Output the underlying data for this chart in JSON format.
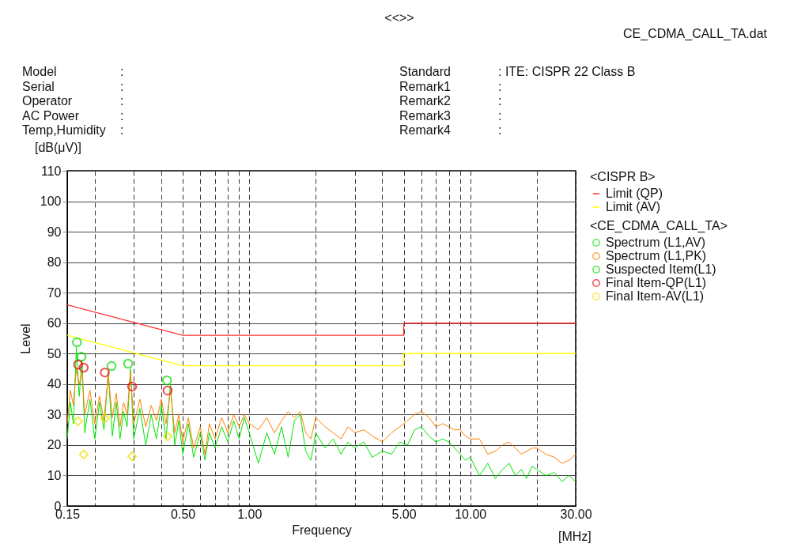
{
  "chart_data": {
    "type": "line",
    "title": "<<>>",
    "xlabel": "Frequency",
    "ylabel": "Level",
    "annotations": [
      "CE_CDMA_CALL_TA.dat",
      "Model :",
      "Serial :",
      "Operator :",
      "AC Power :",
      "Temp,Humidity :",
      "Standard : ITE: CISPR 22 Class B",
      "Remark1 :",
      "Remark2 :",
      "Remark3 :",
      "Remark4 :",
      "[dB(μV)]",
      "[MHz]",
      "<CISPR B>",
      "<CE_CDMA_CALL_TA>"
    ],
    "log": "x",
    "grid": true,
    "legend": "right",
    "xlim": [
      0.15,
      30
    ],
    "ylim": [
      0,
      110
    ],
    "xticks": [
      {
        "value": 0.15,
        "label": "0.15"
      },
      {
        "value": 0.2,
        "label": null
      },
      {
        "value": 0.3,
        "label": null
      },
      {
        "value": 0.4,
        "label": null
      },
      {
        "value": 0.5,
        "label": "0.50"
      },
      {
        "value": 0.6,
        "label": null
      },
      {
        "value": 0.7,
        "label": null
      },
      {
        "value": 0.8,
        "label": null
      },
      {
        "value": 0.9,
        "label": null
      },
      {
        "value": 1,
        "label": "1.00"
      },
      {
        "value": 2,
        "label": null
      },
      {
        "value": 3,
        "label": null
      },
      {
        "value": 4,
        "label": null
      },
      {
        "value": 5,
        "label": "5.00"
      },
      {
        "value": 6,
        "label": null
      },
      {
        "value": 7,
        "label": null
      },
      {
        "value": 8,
        "label": null
      },
      {
        "value": 9,
        "label": null
      },
      {
        "value": 10,
        "label": "10.00"
      },
      {
        "value": 20,
        "label": null
      },
      {
        "value": 30,
        "label": "30.00"
      }
    ],
    "yticks": [
      0,
      10,
      20,
      30,
      40,
      50,
      60,
      70,
      80,
      90,
      100,
      110
    ],
    "series": [
      {
        "name": "Limit (QP)",
        "color": "#ff3333",
        "x": [
          0.15,
          0.5,
          5,
          5,
          30
        ],
        "values": [
          66,
          56,
          56,
          60,
          60
        ]
      },
      {
        "name": "Limit (AV)",
        "color": "#ffff00",
        "x": [
          0.15,
          0.5,
          5,
          5,
          30
        ],
        "values": [
          56,
          46,
          46,
          50,
          50
        ]
      },
      {
        "name": "Spectrum (L1,AV)",
        "color": "#00e600",
        "x": [
          0.15,
          0.155,
          0.16,
          0.165,
          0.17,
          0.175,
          0.18,
          0.19,
          0.2,
          0.21,
          0.22,
          0.23,
          0.24,
          0.25,
          0.26,
          0.27,
          0.28,
          0.29,
          0.3,
          0.32,
          0.34,
          0.36,
          0.38,
          0.4,
          0.42,
          0.44,
          0.46,
          0.48,
          0.5,
          0.53,
          0.56,
          0.6,
          0.63,
          0.66,
          0.7,
          0.75,
          0.8,
          0.85,
          0.9,
          0.95,
          1.0,
          1.1,
          1.2,
          1.3,
          1.4,
          1.5,
          1.6,
          1.7,
          1.8,
          1.9,
          2.0,
          2.2,
          2.4,
          2.6,
          2.8,
          3.0,
          3.3,
          3.6,
          4.0,
          4.4,
          4.8,
          5.2,
          5.6,
          6.0,
          6.5,
          7.0,
          7.5,
          8.0,
          8.5,
          9.0,
          9.5,
          10,
          11,
          12,
          13,
          14,
          15,
          16,
          17,
          18,
          19,
          20,
          22,
          24,
          26,
          28,
          30
        ],
        "values": [
          22,
          34,
          27,
          52,
          36,
          48,
          24,
          35,
          22,
          34,
          25,
          44,
          23,
          34,
          22,
          31,
          26,
          45,
          22,
          32,
          20,
          30,
          22,
          33,
          22,
          40,
          20,
          28,
          17,
          27,
          16,
          24,
          15,
          24,
          19,
          26,
          21,
          28,
          22,
          29,
          24,
          14,
          24,
          17,
          26,
          16,
          28,
          30,
          18,
          15,
          24,
          19,
          22,
          17,
          21,
          19,
          21,
          16,
          18,
          17,
          21,
          20,
          25,
          26,
          23,
          21,
          22,
          21,
          19,
          17,
          15,
          16,
          10,
          14,
          9,
          12,
          14,
          10,
          12,
          9,
          13,
          12,
          10,
          11,
          8,
          10,
          8
        ]
      },
      {
        "name": "Spectrum (L1,PK)",
        "color": "#ff8000",
        "x": [
          0.15,
          0.155,
          0.16,
          0.165,
          0.17,
          0.175,
          0.18,
          0.19,
          0.2,
          0.21,
          0.22,
          0.23,
          0.24,
          0.25,
          0.26,
          0.27,
          0.28,
          0.29,
          0.3,
          0.32,
          0.34,
          0.36,
          0.38,
          0.4,
          0.42,
          0.44,
          0.46,
          0.48,
          0.5,
          0.53,
          0.56,
          0.6,
          0.63,
          0.66,
          0.7,
          0.75,
          0.8,
          0.85,
          0.9,
          0.95,
          1.0,
          1.1,
          1.2,
          1.3,
          1.4,
          1.5,
          1.6,
          1.7,
          1.8,
          1.9,
          2.0,
          2.2,
          2.4,
          2.6,
          2.8,
          3.0,
          3.3,
          3.6,
          4.0,
          4.4,
          4.8,
          5.2,
          5.6,
          6.0,
          6.5,
          7.0,
          7.5,
          8.0,
          8.5,
          9.0,
          9.5,
          10,
          11,
          12,
          13,
          14,
          15,
          16,
          17,
          18,
          19,
          20,
          22,
          24,
          26,
          28,
          30
        ],
        "values": [
          27,
          38,
          33,
          45,
          40,
          44,
          30,
          38,
          27,
          36,
          28,
          43,
          29,
          37,
          26,
          34,
          30,
          44,
          27,
          35,
          26,
          33,
          28,
          35,
          27,
          38,
          24,
          30,
          21,
          29,
          19,
          26,
          17,
          27,
          22,
          29,
          24,
          30,
          26,
          30,
          27,
          25,
          29,
          24,
          28,
          31,
          29,
          31,
          24,
          22,
          29,
          26,
          24,
          22,
          26,
          24,
          25,
          23,
          21,
          24,
          26,
          28,
          30,
          31,
          29,
          26,
          27,
          26,
          25,
          25,
          23,
          22,
          22,
          17,
          18,
          20,
          21,
          19,
          17,
          18,
          19,
          19,
          17,
          16,
          14,
          15,
          17
        ]
      },
      {
        "name": "Suspected Item(L1)",
        "type": "scatter",
        "marker": "circle",
        "color": "#00dd00",
        "x": [
          0.166,
          0.174,
          0.238,
          0.283,
          0.424
        ],
        "values": [
          53.7,
          49.0,
          45.9,
          46.7,
          41.2
        ]
      },
      {
        "name": "Final Item-QP(L1)",
        "type": "scatter",
        "marker": "circle",
        "color": "#ee0000",
        "x": [
          0.168,
          0.178,
          0.222,
          0.295,
          0.427
        ],
        "values": [
          46.4,
          45.4,
          43.8,
          39.2,
          37.9
        ]
      },
      {
        "name": "Final Item-AV(L1)",
        "type": "scatter",
        "marker": "diamond",
        "color": "#f0e000",
        "x": [
          0.168,
          0.178,
          0.222,
          0.295,
          0.427
        ],
        "values": [
          27.8,
          16.9,
          28.8,
          16.3,
          22.8
        ]
      }
    ]
  }
}
